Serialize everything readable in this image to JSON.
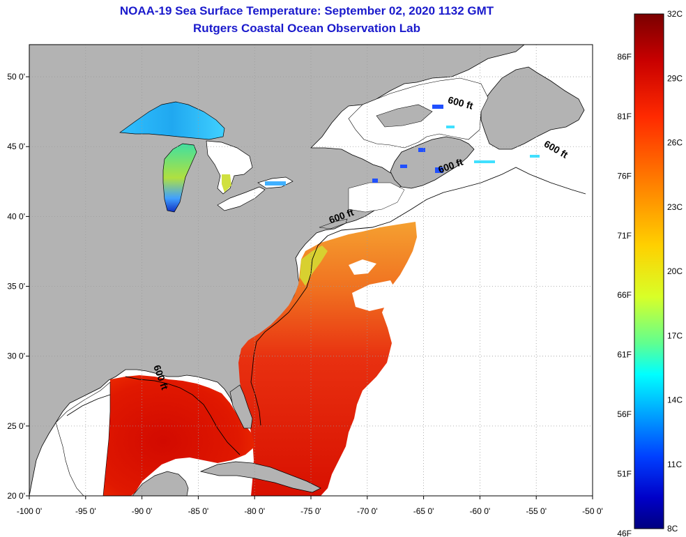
{
  "title": {
    "line1": "NOAA-19 Sea Surface Temperature:  September 02, 2020 1132 GMT",
    "line2": "Rutgers Coastal Ocean Observation Lab"
  },
  "map": {
    "lon_range": [
      -100,
      -50
    ],
    "lat_range": [
      20,
      52.3
    ],
    "lon_ticks": [
      {
        "value": -100,
        "label": "-100 0'"
      },
      {
        "value": -95,
        "label": "-95 0'"
      },
      {
        "value": -90,
        "label": "-90 0'"
      },
      {
        "value": -85,
        "label": "-85 0'"
      },
      {
        "value": -80,
        "label": "-80 0'"
      },
      {
        "value": -75,
        "label": "-75 0'"
      },
      {
        "value": -70,
        "label": "-70 0'"
      },
      {
        "value": -65,
        "label": "-65 0'"
      },
      {
        "value": -60,
        "label": "-60 0'"
      },
      {
        "value": -55,
        "label": "-55 0'"
      },
      {
        "value": -50,
        "label": "-50 0'"
      }
    ],
    "lat_ticks": [
      {
        "value": 50,
        "label": "50 0'"
      },
      {
        "value": 45,
        "label": "45 0'"
      },
      {
        "value": 40,
        "label": "40 0'"
      },
      {
        "value": 35,
        "label": "35 0'"
      },
      {
        "value": 30,
        "label": "30 0'"
      },
      {
        "value": 25,
        "label": "25 0'"
      },
      {
        "value": 20,
        "label": "20 0'"
      }
    ],
    "contour_labels": [
      {
        "text": "600 ft",
        "lon": -61.8,
        "lat": 47.9,
        "angle": 15
      },
      {
        "text": "600 ft",
        "lon": -53.4,
        "lat": 44.6,
        "angle": 30
      },
      {
        "text": "600 ft",
        "lon": -62.5,
        "lat": 43.4,
        "angle": -20
      },
      {
        "text": "600 ft",
        "lon": -72.2,
        "lat": 39.8,
        "angle": -20
      },
      {
        "text": "600 ft",
        "lon": -88.6,
        "lat": 28.4,
        "angle": 70
      }
    ],
    "colors": {
      "land": "#b3b3b3",
      "no_data": "#ffffff",
      "grid": "#9a9a9a"
    }
  },
  "colorbar": {
    "min_c": 8,
    "max_c": 32,
    "celsius_labels": [
      {
        "value": 32,
        "label": "32C"
      },
      {
        "value": 29,
        "label": "29C"
      },
      {
        "value": 26,
        "label": "26C"
      },
      {
        "value": 23,
        "label": "23C"
      },
      {
        "value": 20,
        "label": "20C"
      },
      {
        "value": 17,
        "label": "17C"
      },
      {
        "value": 14,
        "label": "14C"
      },
      {
        "value": 11,
        "label": "11C"
      },
      {
        "value": 8,
        "label": "8C"
      }
    ],
    "fahrenheit_labels": [
      {
        "value": 86,
        "label": "86F"
      },
      {
        "value": 81,
        "label": "81F"
      },
      {
        "value": 76,
        "label": "76F"
      },
      {
        "value": 71,
        "label": "71F"
      },
      {
        "value": 66,
        "label": "66F"
      },
      {
        "value": 61,
        "label": "61F"
      },
      {
        "value": 56,
        "label": "56F"
      },
      {
        "value": 51,
        "label": "51F"
      },
      {
        "value": 46,
        "label": "46F"
      }
    ],
    "stops": [
      "#7a0000",
      "#c80000",
      "#ff2a00",
      "#ff8000",
      "#ffd000",
      "#d8ff28",
      "#60ff90",
      "#00ffff",
      "#00a0ff",
      "#0040ff",
      "#0000c8",
      "#000080"
    ]
  }
}
